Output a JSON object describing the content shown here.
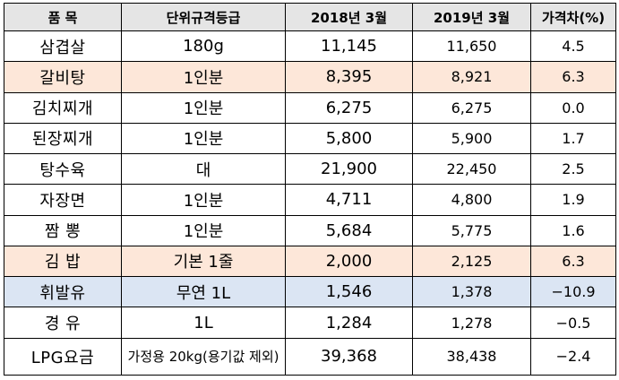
{
  "header": {
    "item": "품 목",
    "unit": "단위규격등급",
    "mar2018": "2018년 3월",
    "mar2019": "2019년 3월",
    "diff": "가격차(%)"
  },
  "rows": [
    {
      "item": "삼겹살",
      "unit": "180g",
      "mar2018": "11,145",
      "mar2019": "11,650",
      "diff": "4.5"
    },
    {
      "item": "갈비탕",
      "unit": "1인분",
      "mar2018": "8,395",
      "mar2019": "8,921",
      "diff": "6.3"
    },
    {
      "item": "김치찌개",
      "unit": "1인분",
      "mar2018": "6,275",
      "mar2019": "6,275",
      "diff": "0.0"
    },
    {
      "item": "된장찌개",
      "unit": "1인분",
      "mar2018": "5,800",
      "mar2019": "5,900",
      "diff": "1.7"
    },
    {
      "item": "탕수육",
      "unit": "대",
      "mar2018": "21,900",
      "mar2019": "22,450",
      "diff": "2.5"
    },
    {
      "item": "자장면",
      "unit": "1인분",
      "mar2018": "4,711",
      "mar2019": "4,800",
      "diff": "1.9"
    },
    {
      "item": "짬 뽕",
      "unit": "1인분",
      "mar2018": "5,684",
      "mar2019": "5,775",
      "diff": "1.6"
    },
    {
      "item": "김 밥",
      "unit": "기본 1줄",
      "mar2018": "2,000",
      "mar2019": "2,125",
      "diff": "6.3"
    },
    {
      "item": "휘발유",
      "unit": "무연 1L",
      "mar2018": "1,546",
      "mar2019": "1,378",
      "diff": "−10.9"
    },
    {
      "item": "경 유",
      "unit": "1L",
      "mar2018": "1,284",
      "mar2019": "1,278",
      "diff": "−0.5"
    },
    {
      "item": "LPG요금",
      "unit": "가정용 20kg(용기값 제외)",
      "mar2018": "39,368",
      "mar2019": "38,438",
      "diff": "−2.4"
    }
  ],
  "highlight_colors": {
    "orange": "#fde7d9",
    "blue": "#dbe5f3",
    "header": "#e5e5e5"
  }
}
